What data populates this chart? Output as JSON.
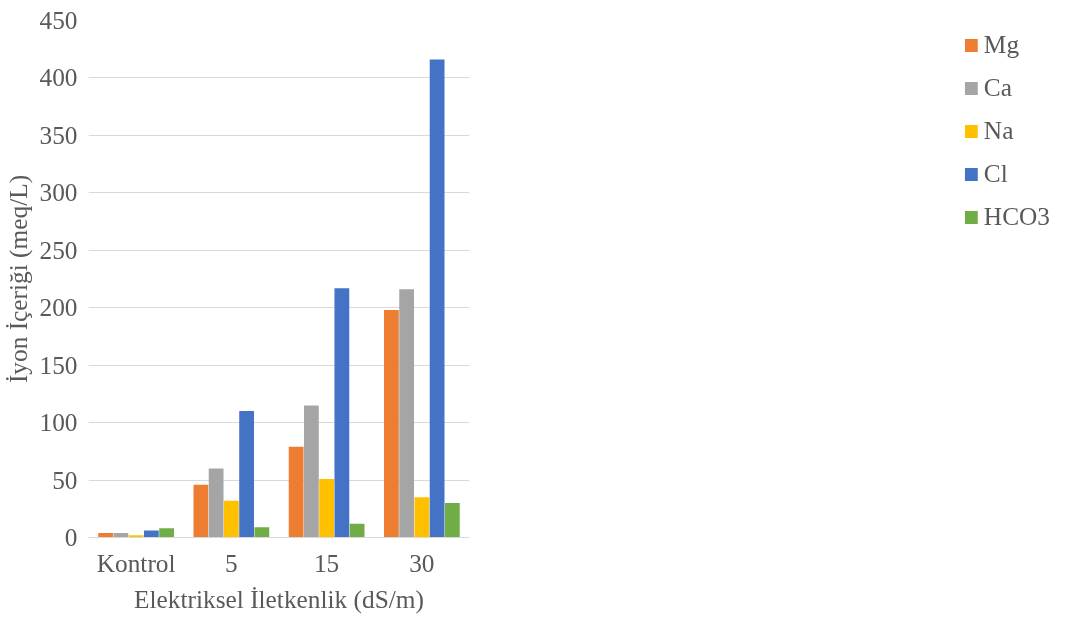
{
  "chart_data": {
    "type": "bar",
    "xlabel": "Elektriksel İletkenlik (dS/m)",
    "ylabel": "İyon İçeriği (meq/L)",
    "categories": [
      "Kontrol",
      "5",
      "15",
      "30"
    ],
    "series": [
      {
        "name": "Mg",
        "color": "#ed7d31",
        "values": [
          4,
          46,
          79,
          198
        ]
      },
      {
        "name": "Ca",
        "color": "#a5a5a5",
        "values": [
          4,
          60,
          115,
          216
        ]
      },
      {
        "name": "Na",
        "color": "#ffc000",
        "values": [
          2,
          32,
          51,
          35
        ]
      },
      {
        "name": "Cl",
        "color": "#4472c4",
        "values": [
          6,
          110,
          217,
          416
        ]
      },
      {
        "name": "HCO3",
        "color": "#70ad47",
        "values": [
          8,
          9,
          12,
          30
        ]
      }
    ],
    "ylim": [
      0,
      450
    ],
    "yticks": [
      0,
      50,
      100,
      150,
      200,
      250,
      300,
      350,
      400,
      450
    ],
    "grid": "y",
    "legend": "right"
  }
}
